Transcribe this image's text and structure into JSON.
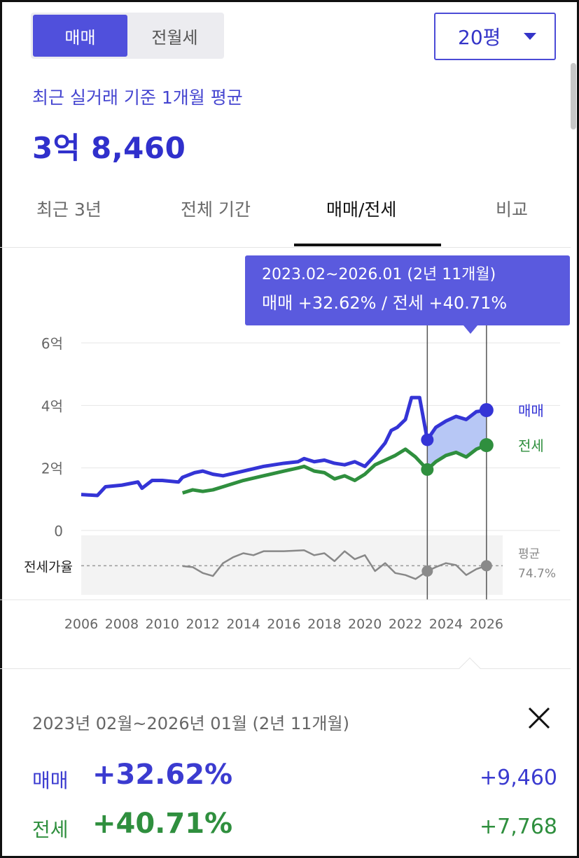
{
  "trade_toggle": {
    "options": [
      "매매",
      "전월세"
    ],
    "selected": "매매"
  },
  "size_select": {
    "value": "20평"
  },
  "summary": {
    "subtitle": "최근 실거래 기준 1개월 평균",
    "price": "3억 8,460"
  },
  "tabs": [
    {
      "label": "최근 3년",
      "active": false
    },
    {
      "label": "전체 기간",
      "active": false
    },
    {
      "label": "매매/전세",
      "active": true
    },
    {
      "label": "비교",
      "active": false
    }
  ],
  "tooltip": {
    "line1": "2023.02~2026.01 (2년 11개월)",
    "line2": "매매 +32.62%  /  전세 +40.71%"
  },
  "colors": {
    "sale": "#3434d6",
    "jeonse": "#2f8f3e",
    "ratio": "#888888",
    "accent": "#5a5ade"
  },
  "chart_data": {
    "type": "line",
    "ylim": [
      0,
      6
    ],
    "y_ticks": [
      "0",
      "2억",
      "4억",
      "6억"
    ],
    "y_tick_values": [
      0,
      2,
      4,
      6
    ],
    "x_ticks": [
      "2006",
      "2008",
      "2010",
      "2012",
      "2014",
      "2016",
      "2018",
      "2020",
      "2022",
      "2024",
      "2026"
    ],
    "xlim": [
      2006,
      2026.8
    ],
    "series": [
      {
        "name": "매매",
        "x": [
          2006,
          2006.8,
          2007.2,
          2008,
          2008.8,
          2009,
          2009.5,
          2010,
          2010.8,
          2011,
          2011.6,
          2012,
          2012.5,
          2013,
          2014,
          2015,
          2016,
          2016.7,
          2017,
          2017.5,
          2018,
          2018.5,
          2019,
          2019.5,
          2020,
          2020.5,
          2021,
          2021.3,
          2021.6,
          2022,
          2022.3,
          2022.7,
          2023.08,
          2023.5,
          2024,
          2024.5,
          2025,
          2025.5,
          2026.0
        ],
        "values": [
          1.15,
          1.12,
          1.4,
          1.45,
          1.55,
          1.35,
          1.6,
          1.6,
          1.55,
          1.7,
          1.85,
          1.9,
          1.8,
          1.75,
          1.9,
          2.05,
          2.15,
          2.2,
          2.3,
          2.2,
          2.25,
          2.15,
          2.1,
          2.2,
          2.05,
          2.4,
          2.8,
          3.2,
          3.3,
          3.55,
          4.25,
          4.25,
          2.9,
          3.3,
          3.5,
          3.65,
          3.55,
          3.8,
          3.85
        ]
      },
      {
        "name": "전세",
        "x": [
          2011,
          2011.5,
          2012,
          2012.5,
          2013,
          2013.5,
          2014,
          2015,
          2016,
          2016.7,
          2017,
          2017.5,
          2018,
          2018.5,
          2019,
          2019.5,
          2020,
          2020.5,
          2021,
          2021.5,
          2022,
          2022.5,
          2023.08,
          2023.5,
          2024,
          2024.5,
          2025,
          2025.5,
          2026.0
        ],
        "values": [
          1.2,
          1.3,
          1.25,
          1.3,
          1.4,
          1.5,
          1.6,
          1.75,
          1.9,
          2.0,
          2.05,
          1.9,
          1.85,
          1.65,
          1.75,
          1.6,
          1.8,
          2.1,
          2.25,
          2.4,
          2.6,
          2.35,
          1.95,
          2.2,
          2.4,
          2.5,
          2.35,
          2.6,
          2.73
        ]
      }
    ],
    "ratio": {
      "label": "전세가율",
      "avg_label": "평균",
      "avg_value": "74.7%",
      "avg": 74.7,
      "x": [
        2011,
        2011.5,
        2012,
        2012.5,
        2013,
        2013.5,
        2014,
        2014.5,
        2015,
        2016,
        2017,
        2017.5,
        2018,
        2018.5,
        2019,
        2019.5,
        2020,
        2020.5,
        2021,
        2021.5,
        2022,
        2022.5,
        2023.08,
        2023.5,
        2024,
        2024.5,
        2025,
        2025.5,
        2026.0
      ],
      "values": [
        74.5,
        74,
        71,
        69.5,
        76,
        79,
        81,
        80,
        82,
        82,
        82.5,
        80,
        81,
        77,
        82,
        78,
        80,
        72,
        76,
        71,
        70,
        68,
        72,
        74,
        76,
        75,
        70,
        73,
        74.7
      ]
    },
    "selection": {
      "start": 2023.08,
      "end": 2026.0,
      "sale_label": "매매",
      "jeonse_label": "전세"
    }
  },
  "detail": {
    "range": "2023년 02월~2026년 01월 (2년 11개월)",
    "sale": {
      "label": "매매",
      "pct": "+32.62%",
      "abs": "+9,460"
    },
    "jeonse": {
      "label": "전세",
      "pct": "+40.71%",
      "abs": "+7,768"
    }
  }
}
